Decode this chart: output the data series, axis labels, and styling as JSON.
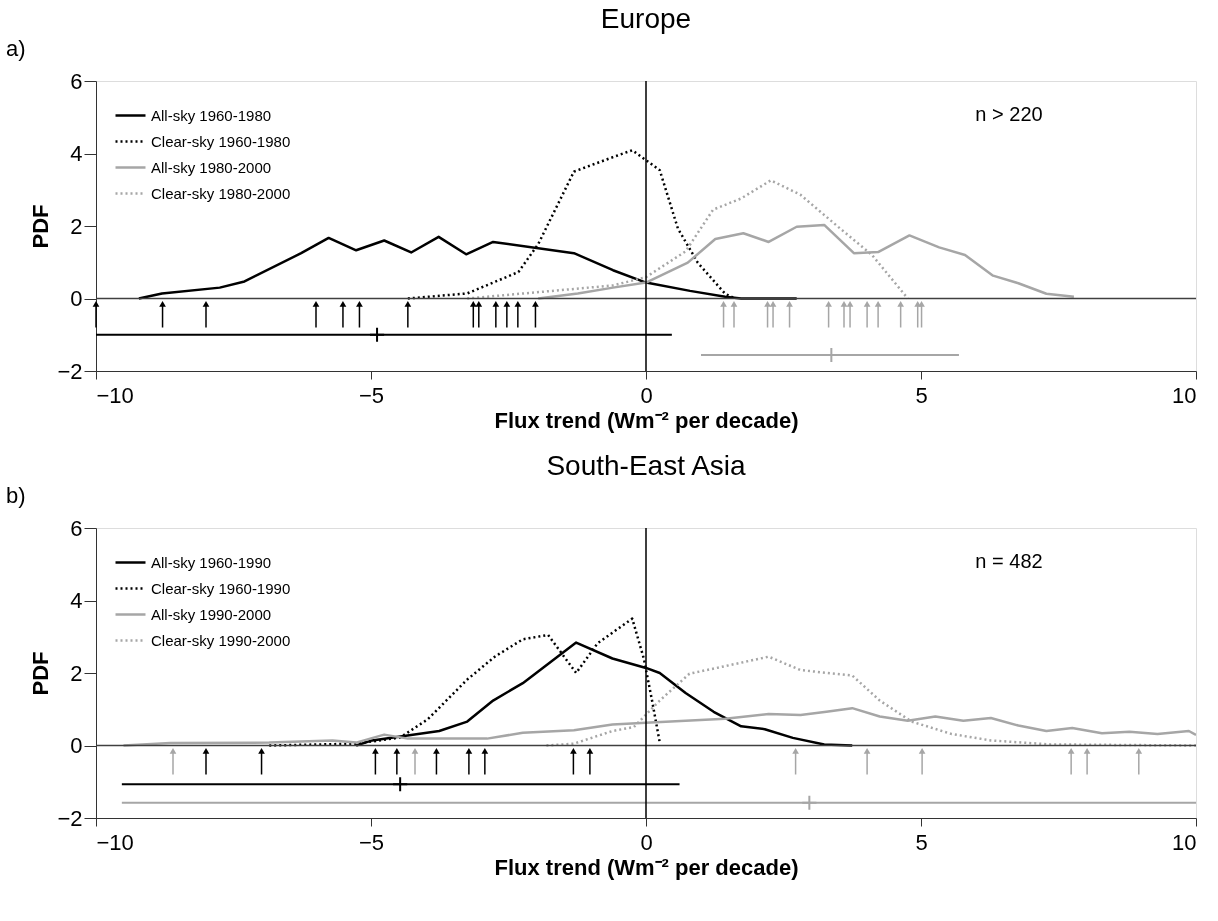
{
  "chart_data": [
    {
      "type": "line",
      "title": "Europe",
      "xlabel": "Flux trend (Wm⁻² per decade)",
      "ylabel": "PDF",
      "annotations": [
        "a)",
        "n > 220"
      ],
      "xlim": [
        -10,
        10
      ],
      "xticks": [
        -10,
        -5,
        0,
        5,
        10
      ],
      "ylim": [
        -2,
        6
      ],
      "yticks": [
        -2,
        0,
        2,
        4,
        6
      ],
      "grid": false,
      "legend": "top left",
      "marker": "none",
      "ref_lines": [
        {
          "axis": "y",
          "value": 0,
          "color": "#404040"
        },
        {
          "axis": "x",
          "value": 0,
          "color": "#000000"
        }
      ],
      "series": [
        {
          "name": "All-sky 1960-1980",
          "color": "#000000",
          "line_style": "solid",
          "x": [
            -9.22,
            -8.8,
            -7.75,
            -7.3,
            -6.27,
            -5.77,
            -5.27,
            -4.76,
            -4.27,
            -3.77,
            -3.27,
            -2.78,
            -1.31,
            -0.6,
            0,
            0.8,
            1.44,
            1.73,
            2.74
          ],
          "values": [
            0,
            0.14,
            0.3,
            0.47,
            1.25,
            1.67,
            1.33,
            1.6,
            1.27,
            1.7,
            1.22,
            1.56,
            1.25,
            0.78,
            0.44,
            0.21,
            0.05,
            0,
            0
          ]
        },
        {
          "name": "Clear-sky 1960-1980",
          "color": "#000000",
          "line_style": "dotted",
          "x": [
            -4.33,
            -3.25,
            -2.32,
            -1.96,
            -1.31,
            -0.6,
            -0.25,
            0.25,
            0.58,
            0.94,
            1.44,
            1.62
          ],
          "values": [
            0,
            0.14,
            0.73,
            1.5,
            3.5,
            3.9,
            4.09,
            3.54,
            1.93,
            0.99,
            0.13,
            0
          ]
        },
        {
          "name": "All-sky 1980-2000",
          "color": "#a6a6a6",
          "line_style": "solid",
          "x": [
            -1.96,
            -1.24,
            -0.6,
            0,
            0.76,
            1.26,
            1.77,
            2.23,
            2.74,
            3.24,
            3.78,
            4.22,
            4.79,
            5.33,
            5.8,
            6.31,
            6.77,
            7.28,
            7.78
          ],
          "values": [
            0,
            0.14,
            0.3,
            0.44,
            0.99,
            1.64,
            1.8,
            1.56,
            1.98,
            2.03,
            1.25,
            1.28,
            1.74,
            1.41,
            1.2,
            0.63,
            0.42,
            0.13,
            0.05
          ]
        },
        {
          "name": "Clear-sky 1980-2000",
          "color": "#a6a6a6",
          "line_style": "dotted",
          "x": [
            -3.25,
            -0.6,
            0,
            0.72,
            1.22,
            1.73,
            2.27,
            2.81,
            3.53,
            4.11,
            4.76
          ],
          "values": [
            0,
            0.36,
            0.59,
            1.3,
            2.45,
            2.76,
            3.26,
            2.86,
            1.93,
            1.2,
            0
          ]
        },
        {
          "type": "scatter",
          "marker": "triangle",
          "color": "#000000",
          "x": [
            -10,
            -8.79,
            -8.0,
            -6.0,
            -5.51,
            -5.21,
            -4.33,
            -3.14,
            -3.04,
            -2.73,
            -2.53,
            -2.33,
            -2.01
          ],
          "values": [
            -0.15,
            -0.15,
            -0.15,
            -0.15,
            -0.15,
            -0.15,
            -0.15,
            -0.15,
            -0.15,
            -0.15,
            -0.15,
            -0.15,
            -0.15
          ],
          "errors": [
            [
              -0.8,
              -0.15
            ],
            [
              -0.8,
              -0.15
            ],
            [
              -0.8,
              -0.15
            ],
            [
              -0.8,
              -0.15
            ],
            [
              -0.8,
              -0.15
            ],
            [
              -0.8,
              -0.15
            ],
            [
              -0.8,
              -0.15
            ],
            [
              -0.8,
              -0.15
            ],
            [
              -0.8,
              -0.15
            ],
            [
              -0.8,
              -0.15
            ],
            [
              -0.8,
              -0.15
            ],
            [
              -0.8,
              -0.15
            ],
            [
              -0.8,
              -0.15
            ]
          ]
        },
        {
          "type": "scatter",
          "marker": "triangle",
          "color": "#a6a6a6",
          "x": [
            1.41,
            1.6,
            2.21,
            2.31,
            2.61,
            3.32,
            3.6,
            3.71,
            4.02,
            4.22,
            4.63,
            4.94,
            5.01
          ],
          "values": [
            -0.15,
            -0.15,
            -0.15,
            -0.15,
            -0.15,
            -0.15,
            -0.15,
            -0.15,
            -0.15,
            -0.15,
            -0.15,
            -0.15,
            -0.15
          ],
          "errors": [
            [
              -0.8,
              -0.15
            ],
            [
              -0.8,
              -0.15
            ],
            [
              -0.8,
              -0.15
            ],
            [
              -0.8,
              -0.15
            ],
            [
              -0.8,
              -0.15
            ],
            [
              -0.8,
              -0.15
            ],
            [
              -0.8,
              -0.15
            ],
            [
              -0.8,
              -0.15
            ],
            [
              -0.8,
              -0.15
            ],
            [
              -0.8,
              -0.15
            ],
            [
              -0.8,
              -0.15
            ],
            [
              -0.8,
              -0.15
            ],
            [
              -0.8,
              -0.15
            ]
          ]
        },
        {
          "type": "scatter",
          "marker": "cross",
          "color": "#000000",
          "x": [
            -4.89
          ],
          "values": [
            -1.0
          ],
          "xerrors": [
            [
              -10,
              0.47
            ]
          ]
        },
        {
          "type": "scatter",
          "marker": "cross",
          "color": "#a6a6a6",
          "x": [
            3.37
          ],
          "values": [
            -1.56
          ],
          "xerrors": [
            [
              1.0,
              5.69
            ]
          ]
        }
      ]
    },
    {
      "type": "line",
      "title": "South-East Asia",
      "xlabel": "Flux trend (Wm⁻² per decade)",
      "ylabel": "PDF",
      "annotations": [
        "b)",
        "n = 482"
      ],
      "xlim": [
        -10,
        10
      ],
      "xticks": [
        -10,
        -5,
        0,
        5,
        10
      ],
      "ylim": [
        -2,
        6
      ],
      "yticks": [
        -2,
        0,
        2,
        4,
        6
      ],
      "grid": false,
      "legend": "top left",
      "marker": "none",
      "ref_lines": [
        {
          "axis": "y",
          "value": 0,
          "color": "#404040"
        },
        {
          "axis": "x",
          "value": 0,
          "color": "#000000"
        }
      ],
      "series": [
        {
          "name": "All-sky 1960-1990",
          "color": "#000000",
          "line_style": "solid",
          "x": [
            -5.27,
            -4.98,
            -4.4,
            -3.76,
            -3.25,
            -2.78,
            -2.24,
            -1.27,
            -0.61,
            0,
            0.25,
            0.72,
            1.23,
            1.73,
            2.16,
            2.67,
            3.24,
            3.75
          ],
          "values": [
            0,
            0.14,
            0.26,
            0.4,
            0.66,
            1.24,
            1.72,
            2.84,
            2.4,
            2.14,
            2.0,
            1.45,
            0.93,
            0.53,
            0.45,
            0.21,
            0.03,
            0
          ]
        },
        {
          "name": "Clear-sky 1960-1990",
          "color": "#000000",
          "line_style": "dotted",
          "x": [
            -6.85,
            -5.27,
            -4.47,
            -3.97,
            -3.25,
            -2.75,
            -2.24,
            -1.78,
            -1.27,
            -0.88,
            -0.25,
            -0.04,
            0.11,
            0.25
          ],
          "values": [
            0,
            0.05,
            0.22,
            0.72,
            1.82,
            2.45,
            2.93,
            3.05,
            2.0,
            2.82,
            3.5,
            2.4,
            1.24,
            0.08
          ]
        },
        {
          "name": "All-sky 1990-2000",
          "color": "#a6a6a6",
          "line_style": "solid",
          "x": [
            -9.5,
            -8.65,
            -6.85,
            -5.7,
            -5.27,
            -4.76,
            -4.33,
            -2.89,
            -2.24,
            -1.31,
            -0.61,
            0,
            1.44,
            2.23,
            2.81,
            3.28,
            3.75,
            4.25,
            4.76,
            5.26,
            5.77,
            6.27,
            6.77,
            7.28,
            7.75,
            8.29,
            8.79,
            9.3,
            9.87,
            10
          ],
          "values": [
            0,
            0.07,
            0.08,
            0.14,
            0.08,
            0.3,
            0.19,
            0.19,
            0.35,
            0.42,
            0.58,
            0.63,
            0.74,
            0.87,
            0.84,
            0.93,
            1.03,
            0.8,
            0.68,
            0.8,
            0.68,
            0.76,
            0.55,
            0.4,
            0.48,
            0.34,
            0.38,
            0.32,
            0.4,
            0.29
          ]
        },
        {
          "name": "Clear-sky 1990-2000",
          "color": "#a6a6a6",
          "line_style": "dotted",
          "x": [
            -1.81,
            -1.31,
            -0.61,
            -0.22,
            0.25,
            0.79,
            1.44,
            2.23,
            2.81,
            3.75,
            4.25,
            4.83,
            5.55,
            6.27,
            7.35,
            10
          ],
          "values": [
            0,
            0.05,
            0.4,
            0.51,
            1.24,
            1.98,
            2.19,
            2.45,
            2.08,
            1.93,
            1.24,
            0.66,
            0.32,
            0.14,
            0.03,
            0
          ]
        },
        {
          "type": "scatter",
          "marker": "triangle",
          "color": "#000000",
          "x": [
            -8.0,
            -6.99,
            -4.92,
            -4.53,
            -3.81,
            -3.22,
            -2.93,
            -1.32,
            -1.02
          ],
          "values": [
            -0.15,
            -0.15,
            -0.15,
            -0.15,
            -0.15,
            -0.15,
            -0.15,
            -0.15,
            -0.15
          ],
          "errors": [
            [
              -0.8,
              -0.15
            ],
            [
              -0.8,
              -0.15
            ],
            [
              -0.8,
              -0.15
            ],
            [
              -0.8,
              -0.15
            ],
            [
              -0.8,
              -0.15
            ],
            [
              -0.8,
              -0.15
            ],
            [
              -0.8,
              -0.15
            ],
            [
              -0.8,
              -0.15
            ],
            [
              -0.8,
              -0.15
            ]
          ]
        },
        {
          "type": "scatter",
          "marker": "triangle",
          "color": "#a6a6a6",
          "x": [
            -8.6,
            -4.2,
            2.72,
            4.02,
            5.02,
            7.73,
            8.02,
            8.96
          ],
          "values": [
            -0.15,
            -0.15,
            -0.15,
            -0.15,
            -0.15,
            -0.15,
            -0.15,
            -0.15
          ],
          "errors": [
            [
              -0.8,
              -0.15
            ],
            [
              -0.8,
              -0.15
            ],
            [
              -0.8,
              -0.15
            ],
            [
              -0.8,
              -0.15
            ],
            [
              -0.8,
              -0.15
            ],
            [
              -0.8,
              -0.15
            ],
            [
              -0.8,
              -0.15
            ],
            [
              -0.8,
              -0.15
            ]
          ]
        },
        {
          "type": "scatter",
          "marker": "cross",
          "color": "#000000",
          "x": [
            -4.47
          ],
          "values": [
            -1.07
          ],
          "xerrors": [
            [
              -9.53,
              0.61
            ]
          ]
        },
        {
          "type": "scatter",
          "marker": "cross",
          "color": "#a6a6a6",
          "x": [
            2.97
          ],
          "values": [
            -1.58
          ],
          "xerrors": [
            [
              -9.53,
              10
            ]
          ]
        }
      ]
    }
  ]
}
